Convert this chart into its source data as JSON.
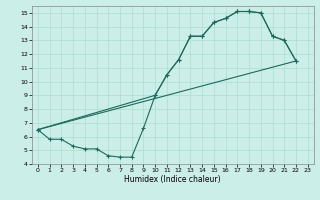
{
  "title": "",
  "xlabel": "Humidex (Indice chaleur)",
  "bg_color": "#cceee8",
  "line_color": "#1a6b5a",
  "grid_color": "#aaddcc",
  "xlim": [
    -0.5,
    23.5
  ],
  "ylim": [
    4,
    15.5
  ],
  "xticks": [
    0,
    1,
    2,
    3,
    4,
    5,
    6,
    7,
    8,
    9,
    10,
    11,
    12,
    13,
    14,
    15,
    16,
    17,
    18,
    19,
    20,
    21,
    22,
    23
  ],
  "yticks": [
    4,
    5,
    6,
    7,
    8,
    9,
    10,
    11,
    12,
    13,
    14,
    15
  ],
  "series": [
    {
      "x": [
        0,
        1,
        2,
        3,
        4,
        5,
        6,
        7,
        8,
        9,
        10,
        11,
        12,
        13,
        14,
        15,
        16,
        17,
        18
      ],
      "y": [
        6.5,
        5.8,
        5.8,
        5.3,
        5.1,
        5.1,
        4.6,
        4.5,
        4.5,
        6.6,
        9.0,
        10.5,
        11.6,
        13.3,
        13.3,
        14.3,
        14.6,
        15.1,
        15.1
      ],
      "marker": true
    },
    {
      "x": [
        18,
        19,
        20,
        21,
        22
      ],
      "y": [
        15.1,
        15.0,
        13.3,
        13.0,
        11.5
      ],
      "marker": true
    },
    {
      "x": [
        0,
        22
      ],
      "y": [
        6.5,
        11.5
      ],
      "marker": false
    },
    {
      "x": [
        0,
        10,
        11,
        12,
        13,
        14,
        15,
        16,
        17,
        18,
        19,
        20,
        21,
        22
      ],
      "y": [
        6.5,
        9.0,
        10.5,
        11.6,
        13.3,
        13.3,
        14.3,
        14.6,
        15.1,
        15.1,
        15.0,
        13.3,
        13.0,
        11.5
      ],
      "marker": true
    }
  ]
}
